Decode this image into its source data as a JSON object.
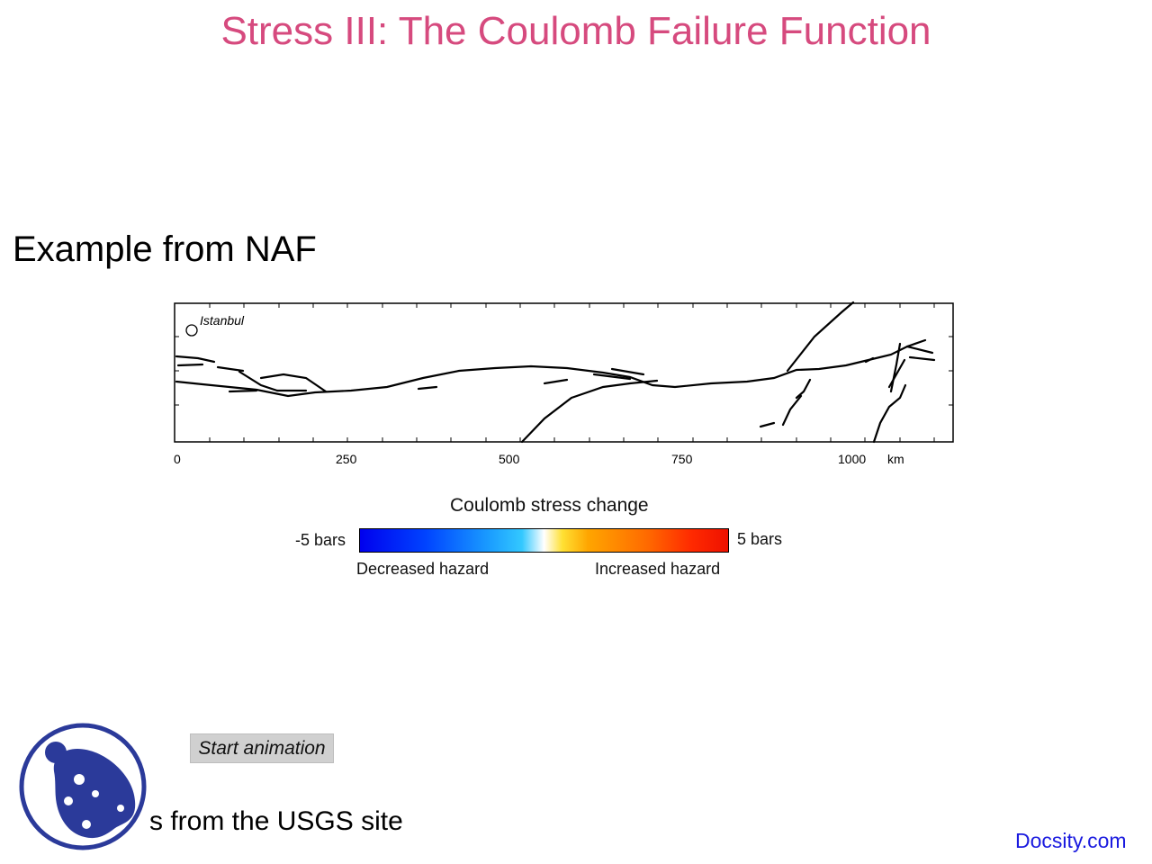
{
  "slide": {
    "title": "Stress III: The Coulomb Failure Function",
    "subtitle": "Example from NAF"
  },
  "map": {
    "city_label": "Istanbul",
    "x_ticks": [
      "0",
      "250",
      "500",
      "750",
      "1000"
    ],
    "x_unit": "km"
  },
  "legend": {
    "title": "Coulomb stress change",
    "min_label": "-5 bars",
    "max_label": "5 bars",
    "decreased_label": "Decreased hazard",
    "increased_label": "Increased hazard",
    "colors": [
      "#0000ee",
      "#1a9cff",
      "#ffffff",
      "#ffa500",
      "#ee1100"
    ]
  },
  "controls": {
    "animation_button": "Start animation"
  },
  "footer": {
    "credit": "s from the USGS site",
    "brand": "Docsity.com",
    "logo_icon": "docsity-logo-icon"
  }
}
